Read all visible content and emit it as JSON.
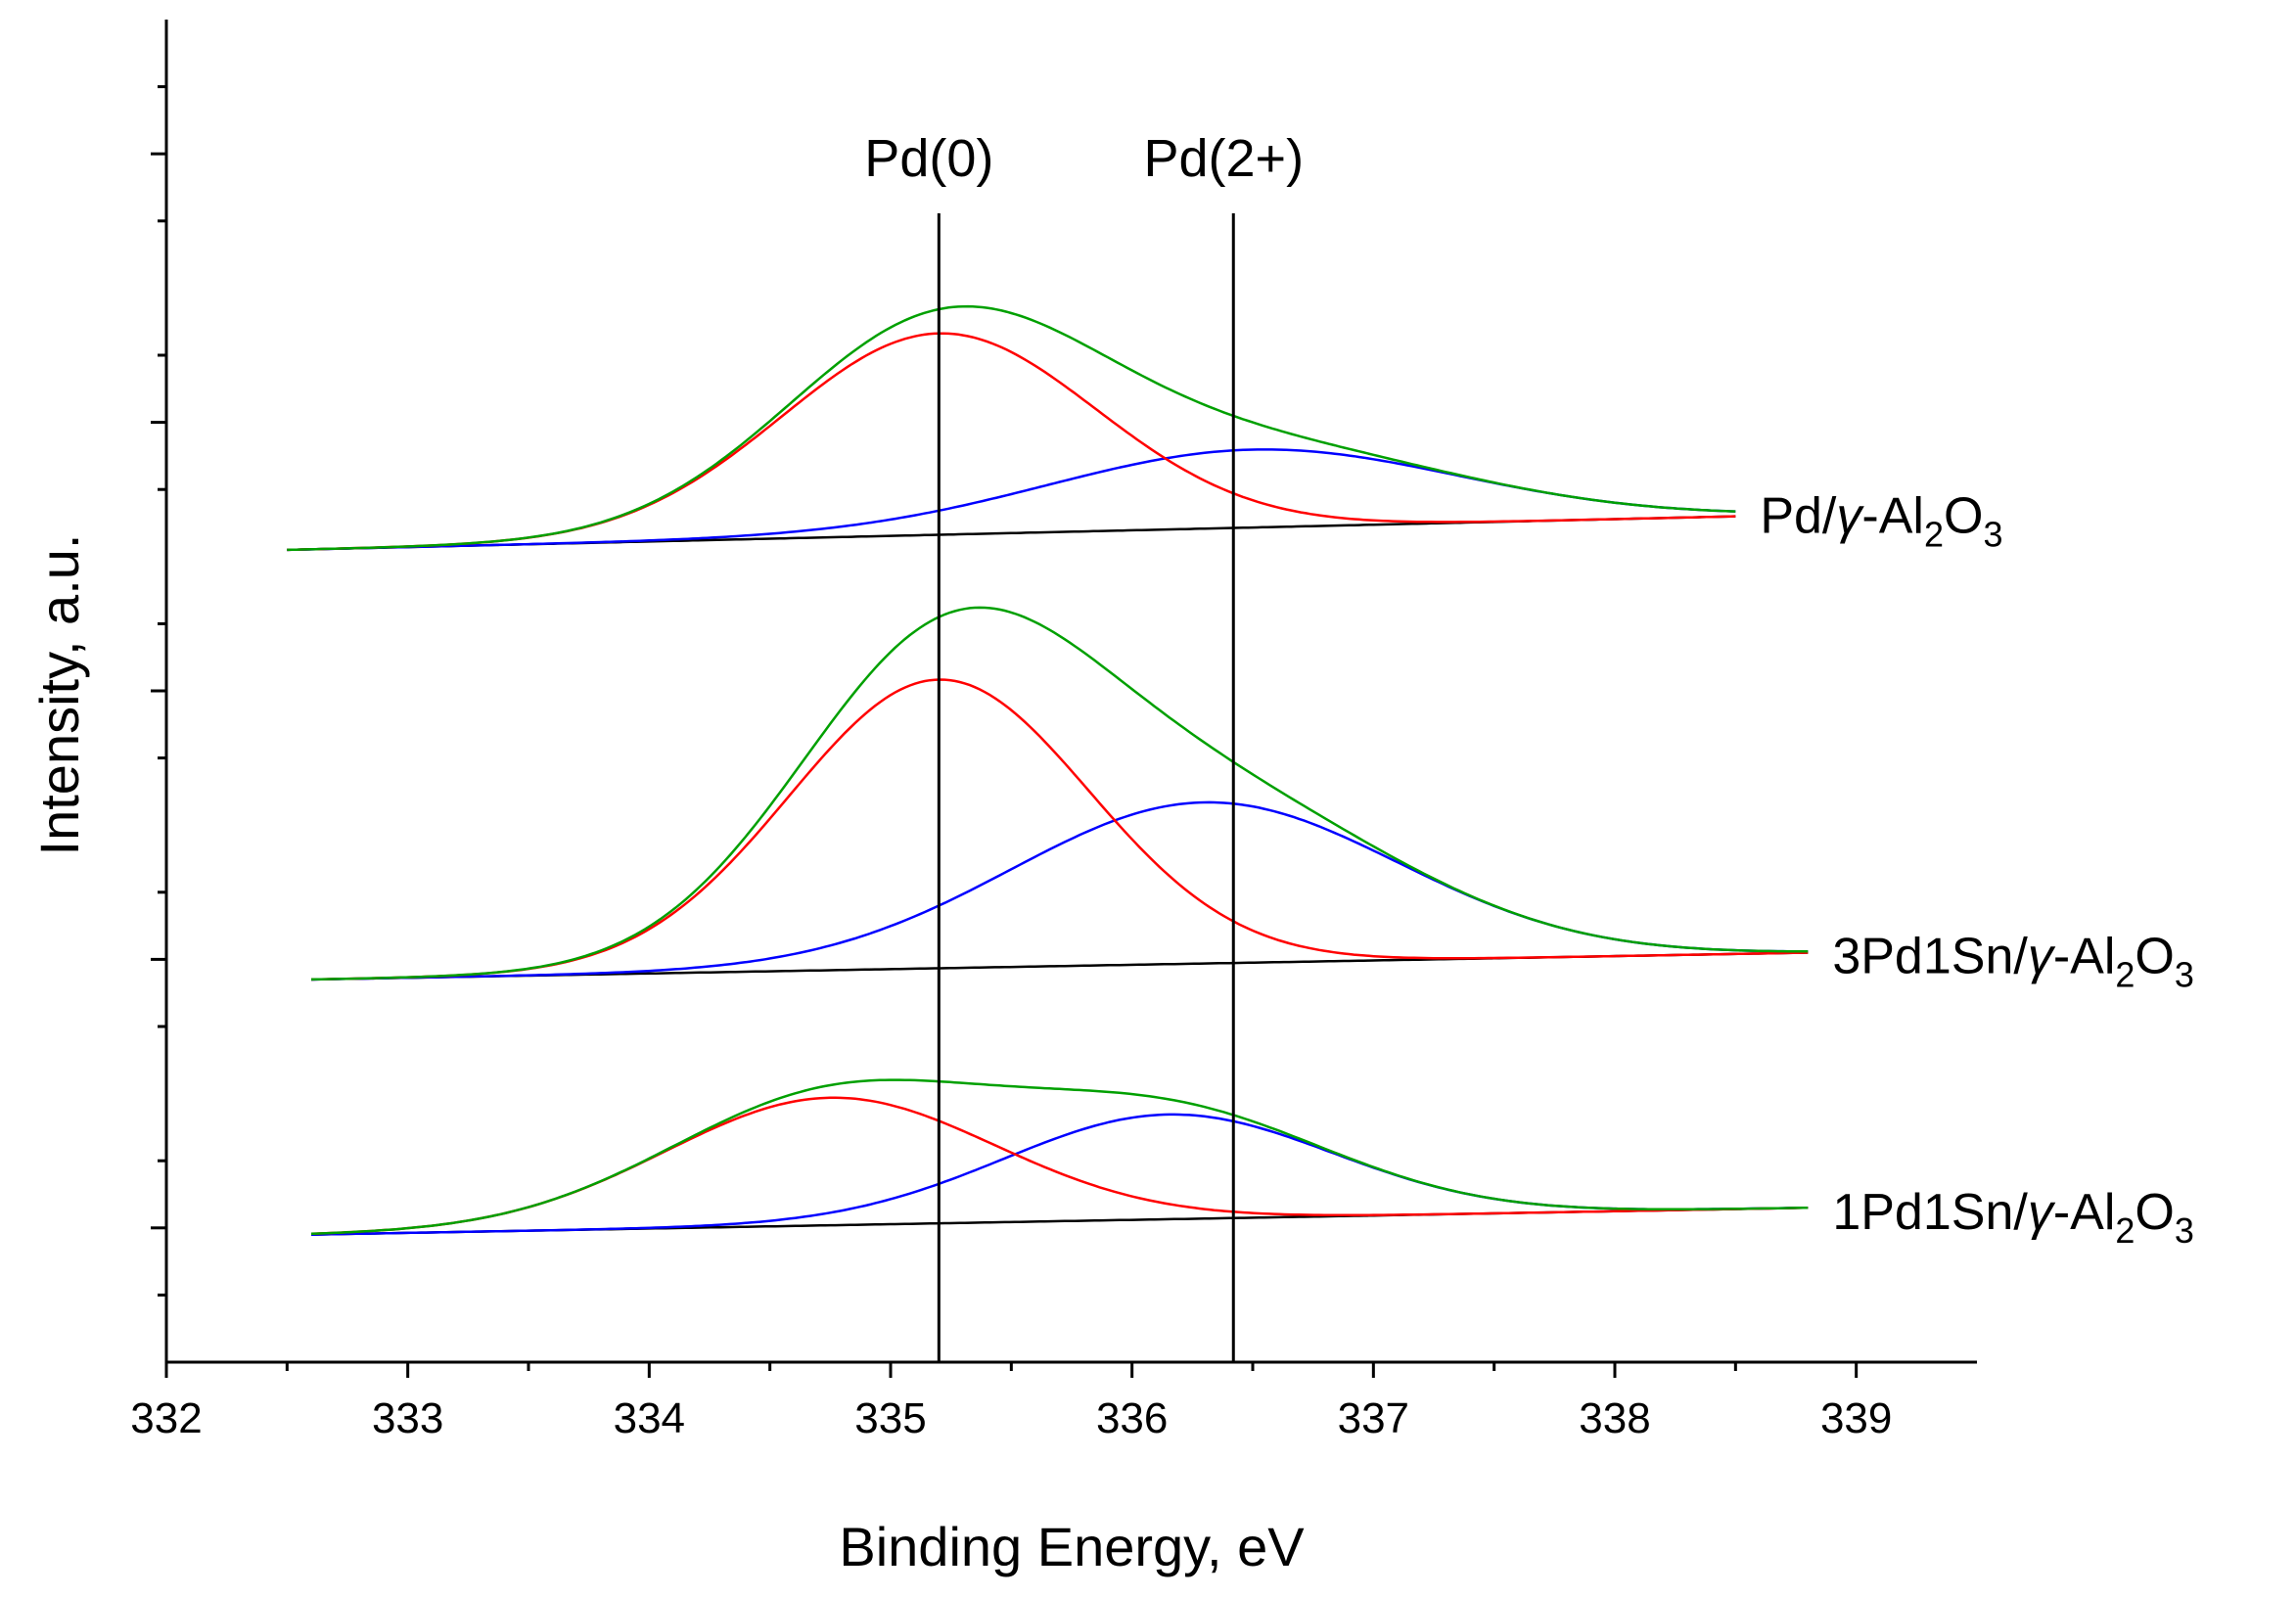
{
  "chart_data": {
    "type": "line",
    "title": "",
    "xlabel": "Binding Energy, eV",
    "ylabel": "Intensity, a.u.",
    "xlim": [
      332,
      339.5
    ],
    "ylim": [
      0,
      10
    ],
    "x_ticks": [
      332,
      333,
      334,
      335,
      336,
      337,
      338,
      339
    ],
    "y_ticks_major": [
      1,
      3,
      5,
      7,
      9
    ],
    "y_ticks_minor": [
      0.5,
      1.5,
      2.5,
      3.5,
      4.5,
      5.5,
      6.5,
      7.5,
      8.5,
      9.5
    ],
    "y_tick_labels_shown": false,
    "grid": false,
    "colors": {
      "green": "#00a000",
      "red": "#ff0000",
      "blue": "#0000ff",
      "black": "#000000"
    },
    "reference_lines": [
      {
        "label": "Pd(0)",
        "x": 335.2
      },
      {
        "label": "Pd(2+)",
        "x": 336.42
      }
    ],
    "samples": [
      {
        "label_prefix": "Pd/",
        "label_gamma": "γ",
        "label_mid": "-Al",
        "label_sub1": "2",
        "label_o": "O",
        "label_sub2": "3",
        "x_range": [
          332.5,
          338.5
        ],
        "baseline": [
          [
            332.5,
            6.05
          ],
          [
            338.5,
            6.3
          ]
        ],
        "red_peak": {
          "center": 335.2,
          "height": 1.5,
          "sigma": 0.65
        },
        "blue_peak": {
          "center": 336.5,
          "height": 0.58,
          "sigma": 0.85
        },
        "series": [
          "envelope (green)",
          "Pd(0) component (red)",
          "Pd(2+) component (blue)",
          "background (black)"
        ]
      },
      {
        "label_prefix": "3Pd1Sn/",
        "label_gamma": "γ",
        "label_mid": "-Al",
        "label_sub1": "2",
        "label_o": "O",
        "label_sub2": "3",
        "x_range": [
          332.6,
          338.8
        ],
        "baseline": [
          [
            332.6,
            2.85
          ],
          [
            338.8,
            3.05
          ]
        ],
        "red_peak": {
          "center": 335.2,
          "height": 2.15,
          "sigma": 0.62
        },
        "blue_peak": {
          "center": 336.3,
          "height": 1.2,
          "sigma": 0.8
        },
        "series": [
          "envelope (green)",
          "Pd(0) component (red)",
          "Pd(2+) component (blue)",
          "background (black)"
        ]
      },
      {
        "label_prefix": "1Pd1Sn/",
        "label_gamma": "γ",
        "label_mid": "-Al",
        "label_sub1": "2",
        "label_o": "O",
        "label_sub2": "3",
        "x_range": [
          332.6,
          338.8
        ],
        "baseline": [
          [
            332.6,
            0.95
          ],
          [
            338.8,
            1.15
          ]
        ],
        "red_peak": {
          "center": 334.75,
          "height": 0.95,
          "sigma": 0.68
        },
        "blue_peak": {
          "center": 336.15,
          "height": 0.78,
          "sigma": 0.68
        },
        "series": [
          "envelope (green)",
          "Pd(0) component (red)",
          "Pd(2+) component (blue)",
          "background (black)"
        ]
      }
    ]
  }
}
